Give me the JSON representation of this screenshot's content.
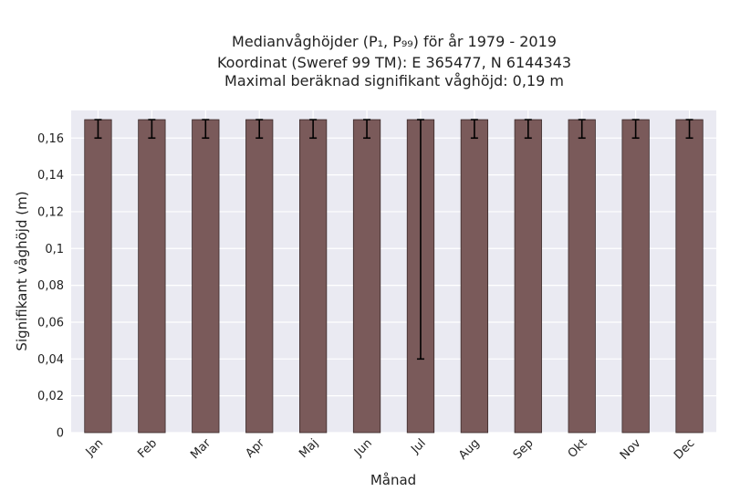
{
  "chart_data": {
    "type": "bar",
    "title_lines": [
      "Medianvåghöjder (P₁, P₉₉) för år 1979 - 2019",
      "Koordinat (Sweref 99 TM): E 365477, N 6144343",
      "Maximal beräknad signifikant våghöjd: 0,19 m"
    ],
    "xlabel": "Månad",
    "ylabel": "Signifikant våghöjd (m)",
    "categories": [
      "Jan",
      "Feb",
      "Mar",
      "Apr",
      "Maj",
      "Jun",
      "Jul",
      "Aug",
      "Sep",
      "Okt",
      "Nov",
      "Dec"
    ],
    "values": [
      0.17,
      0.17,
      0.17,
      0.17,
      0.17,
      0.17,
      0.17,
      0.17,
      0.17,
      0.17,
      0.17,
      0.17
    ],
    "err_low": [
      0.16,
      0.16,
      0.16,
      0.16,
      0.16,
      0.16,
      0.04,
      0.16,
      0.16,
      0.16,
      0.16,
      0.16
    ],
    "err_high": [
      0.17,
      0.17,
      0.17,
      0.17,
      0.17,
      0.17,
      0.17,
      0.17,
      0.17,
      0.17,
      0.17,
      0.17
    ],
    "ylim": [
      0,
      0.175
    ],
    "yticks": [
      0,
      0.02,
      0.04,
      0.06,
      0.08,
      0.1,
      0.12,
      0.14,
      0.16
    ],
    "ytick_labels": [
      "0",
      "0,02",
      "0,04",
      "0,06",
      "0,08",
      "0,1",
      "0,12",
      "0,14",
      "0,16"
    ],
    "grid": true,
    "colors": {
      "bar": "#7a5a5a",
      "bar_edge": "#3a2a2a",
      "background": "#eaeaf2",
      "grid": "#ffffff",
      "error": "#000000"
    }
  }
}
